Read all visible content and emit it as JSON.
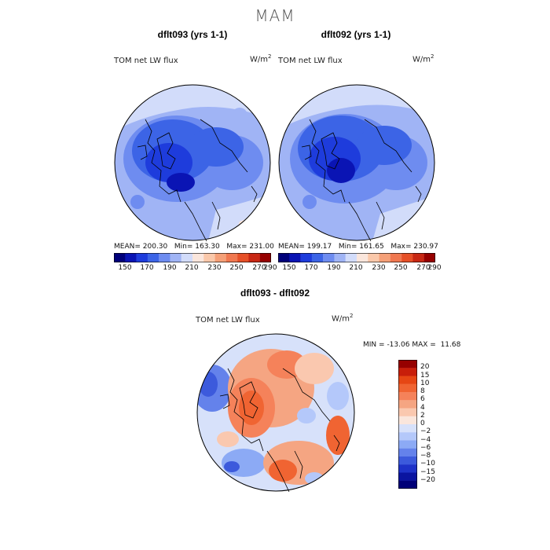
{
  "season": "MAM",
  "top_left": {
    "title": "dflt093 (yrs 1-1)",
    "variable": "TOM net LW flux",
    "units": "W/m",
    "units_exp": "2",
    "mean_label": "MEAN=",
    "mean": "200.30",
    "min_label": "Min=",
    "min": "163.30",
    "max_label": "Max=",
    "max": "231.00"
  },
  "top_right": {
    "title": "dflt092 (yrs 1-1)",
    "variable": "TOM net LW flux",
    "units": "W/m",
    "units_exp": "2",
    "mean_label": "MEAN=",
    "mean": "199.17",
    "min_label": "Min=",
    "min": "161.65",
    "max_label": "Max=",
    "max": "230.97"
  },
  "diff": {
    "title": "dflt093 - dflt092",
    "variable": "TOM net LW flux",
    "units": "W/m",
    "units_exp": "2",
    "min_label": "MIN =",
    "min": "-13.06",
    "max_label": "MAX =",
    "max": "11.68"
  },
  "abs_colorbar": {
    "tick_labels": [
      "150",
      "170",
      "190",
      "210",
      "230",
      "250",
      "270",
      "290"
    ],
    "colors": [
      "#00007a",
      "#0a14b4",
      "#1e3cdc",
      "#3c64e6",
      "#6e8cf0",
      "#a0b4f5",
      "#d2dcfa",
      "#fae6dc",
      "#fac8aa",
      "#f5a078",
      "#f07850",
      "#e65028",
      "#c82814",
      "#960000"
    ]
  },
  "diff_colorbar": {
    "labels": [
      "20",
      "15",
      "10",
      "8",
      "6",
      "4",
      "2",
      "0",
      "−2",
      "−4",
      "−6",
      "−8",
      "−10",
      "−15",
      "−20"
    ],
    "colors": [
      "#960000",
      "#c81e0a",
      "#e64614",
      "#f06432",
      "#f5825a",
      "#f5a582",
      "#fac8af",
      "#fae6dc",
      "#d7e1fa",
      "#b4c8fa",
      "#8caaf5",
      "#6482eb",
      "#3c5adc",
      "#1e32c8",
      "#0a14a0",
      "#000078"
    ]
  },
  "chart_data": {
    "type": "heatmap",
    "projection": "north polar stereographic",
    "panels": [
      {
        "title": "dflt093 (yrs 1-1)",
        "variable": "TOM net LW flux",
        "units": "W/m2",
        "mean": 200.3,
        "min": 163.3,
        "max": 231.0
      },
      {
        "title": "dflt092 (yrs 1-1)",
        "variable": "TOM net LW flux",
        "units": "W/m2",
        "mean": 199.17,
        "min": 161.65,
        "max": 230.97
      },
      {
        "title": "dflt093 - dflt092",
        "variable": "TOM net LW flux",
        "units": "W/m2",
        "min": -13.06,
        "max": 11.68
      }
    ],
    "abs_levels": [
      150,
      160,
      170,
      180,
      190,
      200,
      210,
      220,
      230,
      240,
      250,
      260,
      270,
      280,
      290
    ],
    "diff_levels": [
      -20,
      -15,
      -10,
      -8,
      -6,
      -4,
      -2,
      0,
      2,
      4,
      6,
      8,
      10,
      15,
      20
    ]
  }
}
